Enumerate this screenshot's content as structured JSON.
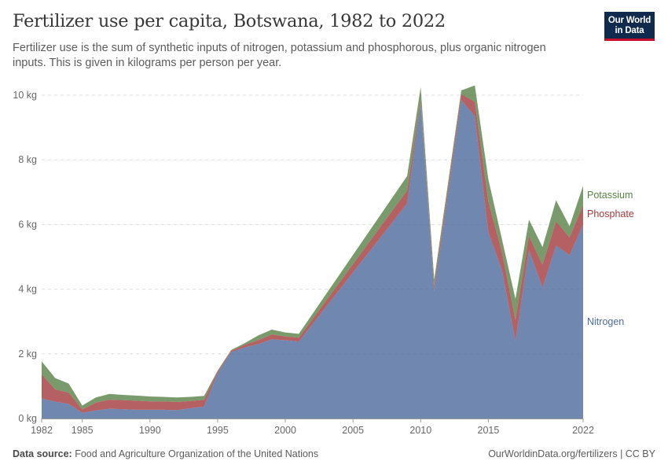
{
  "header": {
    "title": "Fertilizer use per capita, Botswana, 1982 to 2022",
    "subtitle": "Fertilizer use is the sum of synthetic inputs of nitrogen, potassium and phosphorous, plus organic nitrogen inputs. This is given in kilograms per person per year."
  },
  "logo": {
    "line1": "Our World",
    "line2": "in Data",
    "bg_color": "#0f2a4d",
    "accent_color": "#c8102e"
  },
  "footer": {
    "source_label": "Data source:",
    "source_text": "Food and Agriculture Organization of the United Nations",
    "url_text": "OurWorldinData.org/fertilizers | CC BY"
  },
  "chart_data": {
    "type": "area",
    "stacked": true,
    "title": "Fertilizer use per capita, Botswana, 1982 to 2022",
    "xlabel": "",
    "ylabel": "",
    "xlim": [
      1982,
      2022
    ],
    "ylim": [
      0,
      10
    ],
    "grid": true,
    "y_ticks": [
      {
        "value": 0,
        "label": "0 kg"
      },
      {
        "value": 2,
        "label": "2 kg"
      },
      {
        "value": 4,
        "label": "4 kg"
      },
      {
        "value": 6,
        "label": "6 kg"
      },
      {
        "value": 8,
        "label": "8 kg"
      },
      {
        "value": 10,
        "label": "10 kg"
      }
    ],
    "x_ticks": [
      {
        "value": 1982,
        "label": "1982"
      },
      {
        "value": 1985,
        "label": "1985"
      },
      {
        "value": 1990,
        "label": "1990"
      },
      {
        "value": 1995,
        "label": "1995"
      },
      {
        "value": 2000,
        "label": "2000"
      },
      {
        "value": 2005,
        "label": "2005"
      },
      {
        "value": 2010,
        "label": "2010"
      },
      {
        "value": 2015,
        "label": "2015"
      },
      {
        "value": 2022,
        "label": "2022"
      }
    ],
    "x": [
      1982,
      1983,
      1984,
      1985,
      1986,
      1987,
      1988,
      1989,
      1990,
      1991,
      1992,
      1993,
      1994,
      1995,
      1996,
      1997,
      1998,
      1999,
      2000,
      2001,
      2009,
      2010,
      2011,
      2013,
      2014,
      2015,
      2016,
      2017,
      2018,
      2019,
      2020,
      2021,
      2022
    ],
    "series": [
      {
        "name": "Nitrogen",
        "color": "#4c6a9c",
        "values": [
          0.62,
          0.52,
          0.45,
          0.18,
          0.25,
          0.3,
          0.29,
          0.27,
          0.27,
          0.27,
          0.26,
          0.32,
          0.37,
          1.4,
          2.05,
          2.2,
          2.3,
          2.45,
          2.42,
          2.38,
          6.65,
          9.75,
          3.95,
          9.85,
          9.35,
          5.75,
          4.6,
          2.4,
          5.2,
          4.05,
          5.35,
          5.05,
          6.0
        ]
      },
      {
        "name": "Phosphate",
        "color": "#a2383c",
        "values": [
          0.75,
          0.38,
          0.35,
          0.1,
          0.24,
          0.28,
          0.28,
          0.28,
          0.26,
          0.26,
          0.25,
          0.22,
          0.21,
          0.05,
          0.04,
          0.08,
          0.12,
          0.15,
          0.12,
          0.12,
          0.4,
          0.1,
          0.15,
          0.18,
          0.45,
          0.95,
          0.55,
          0.65,
          0.45,
          0.7,
          0.75,
          0.55,
          0.6
        ]
      },
      {
        "name": "Potassium",
        "color": "#578145",
        "values": [
          0.4,
          0.35,
          0.28,
          0.12,
          0.16,
          0.18,
          0.16,
          0.16,
          0.15,
          0.14,
          0.14,
          0.13,
          0.12,
          0.03,
          0.03,
          0.05,
          0.15,
          0.15,
          0.12,
          0.12,
          0.45,
          0.4,
          0.2,
          0.12,
          0.5,
          0.7,
          0.4,
          0.65,
          0.5,
          0.55,
          0.65,
          0.35,
          0.6
        ]
      }
    ]
  }
}
